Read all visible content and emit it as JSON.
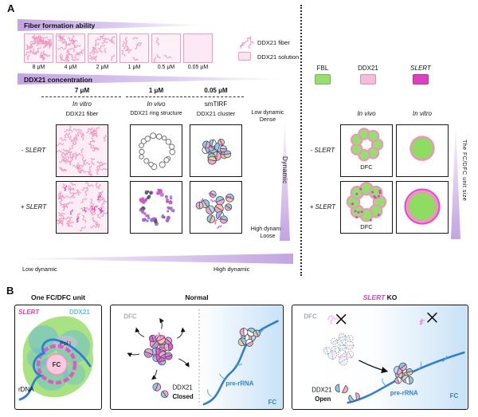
{
  "colors": {
    "magenta": "#df3fc0",
    "pink": "#f2a6ce",
    "pinklight": "#f3bcd9",
    "fiber": "#ef93bd",
    "green": "#97dd6f",
    "blue": "#2f7fd0",
    "lightblue": "#5fc3e8",
    "purple": "#c2a4e2"
  },
  "panelA": {
    "label": "A",
    "fiber": {
      "title": "Fiber formation ability",
      "concentrations": [
        "8 μM",
        "4 μM",
        "2 μM",
        "1 μM",
        "0.5 μM",
        "0.05 μM"
      ],
      "legend_fiber": "DDX21 fiber",
      "legend_solution": "DDX21 solution"
    },
    "conc": {
      "title": "DDX21 concentration",
      "ticks": [
        "7 μM",
        "1 μM",
        "0.05 μM"
      ]
    },
    "methods": [
      "In vitro",
      "In vivo",
      "smTIRF"
    ],
    "structures": [
      "DDX21 fiber",
      "DDX21 ring structure",
      "DDX21 cluster"
    ],
    "rows": [
      {
        "sign": "-",
        "name": "SLERT"
      },
      {
        "sign": "+",
        "name": "SLERT"
      }
    ],
    "dynamics": {
      "dense1": "Low dynamic",
      "dense2": "Dense",
      "loose1": "High dynamic",
      "loose2": "Loose",
      "axis": "Dynamic",
      "low": "Low dynamic",
      "high": "High dynamic"
    },
    "right": {
      "legend": [
        {
          "label": "FBL"
        },
        {
          "label": "DDX21"
        },
        {
          "label": "SLERT"
        }
      ],
      "columns": [
        "In vivo",
        "In vitro"
      ],
      "dfc": "DFC",
      "axis": "The FC/DFC unit size"
    }
  },
  "panelB": {
    "label": "B",
    "unit": {
      "title": "One FC/DFC unit",
      "slert": "SLERT",
      "ddx21": "DDX21",
      "pol1": "Pol I",
      "fc": "FC",
      "rdna": "rDNA"
    },
    "normal": {
      "title": "Normal",
      "dfc": "DFC",
      "ddx21": "DDX21",
      "state": "Closed",
      "prerrna": "pre-rRNA",
      "fc": "FC"
    },
    "ko": {
      "title_gene": "SLERT",
      "title_rest": " KO",
      "dfc": "DFC",
      "ddx21": "DDX21",
      "state": "Open",
      "prerrna": "pre-rRNA",
      "fc": "FC"
    }
  }
}
